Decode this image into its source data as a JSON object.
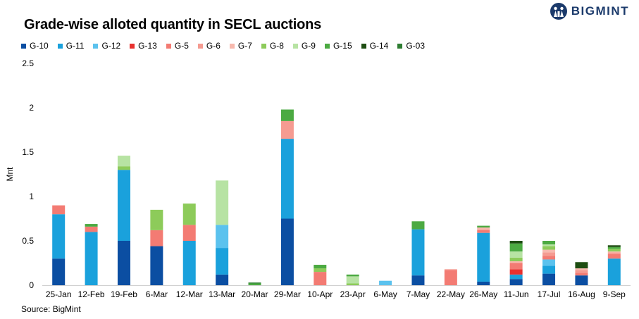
{
  "brand": {
    "name": "BIGMINT",
    "color": "#1b3a6b"
  },
  "source": "Source: BigMint",
  "chart_data": {
    "type": "bar",
    "stacked": true,
    "title": "Grade-wise alloted quantity in SECL auctions",
    "xlabel": "",
    "ylabel": "Mnt",
    "ylim": [
      0,
      2.5
    ],
    "yticks": [
      "0",
      "0.5",
      "1",
      "1.5",
      "2",
      "2.5"
    ],
    "ytick_values": [
      0,
      0.5,
      1,
      1.5,
      2,
      2.5
    ],
    "grid": false,
    "legend": "top",
    "categories": [
      "25-Jan",
      "12-Feb",
      "19-Feb",
      "6-Mar",
      "12-Mar",
      "13-Mar",
      "20-Mar",
      "29-Mar",
      "10-Apr",
      "23-Apr",
      "6-May",
      "7-May",
      "22-May",
      "26-May",
      "11-Jun",
      "17-Jul",
      "16-Aug",
      "9-Sep"
    ],
    "series": [
      {
        "name": "G-10",
        "color": "#0b4ea2",
        "values": [
          0.3,
          0,
          0.5,
          0.44,
          0,
          0.12,
          0,
          0.75,
          0,
          0,
          0,
          0.11,
          0,
          0.04,
          0.07,
          0.13,
          0.11,
          0
        ]
      },
      {
        "name": "G-11",
        "color": "#1aa1dc",
        "values": [
          0.5,
          0.6,
          0.8,
          0,
          0.5,
          0.3,
          0,
          0.9,
          0,
          0,
          0,
          0.52,
          0,
          0.55,
          0.05,
          0.09,
          0,
          0.3
        ]
      },
      {
        "name": "G-12",
        "color": "#5bc2ee",
        "values": [
          0,
          0,
          0,
          0,
          0,
          0.26,
          0,
          0,
          0,
          0,
          0.05,
          0,
          0,
          0,
          0,
          0.07,
          0,
          0
        ]
      },
      {
        "name": "G-13",
        "color": "#e8312f",
        "values": [
          0,
          0,
          0,
          0,
          0,
          0,
          0,
          0,
          0,
          0,
          0,
          0,
          0,
          0,
          0.06,
          0,
          0,
          0
        ]
      },
      {
        "name": "G-5",
        "color": "#f37b73",
        "values": [
          0.1,
          0.06,
          0,
          0.18,
          0.18,
          0,
          0,
          0,
          0.15,
          0,
          0,
          0,
          0.17,
          0.03,
          0.07,
          0.04,
          0.03,
          0.05
        ]
      },
      {
        "name": "G-6",
        "color": "#f59b91",
        "values": [
          0,
          0,
          0,
          0,
          0,
          0,
          0,
          0.2,
          0,
          0,
          0,
          0,
          0.01,
          0.01,
          0,
          0.04,
          0.03,
          0.02
        ]
      },
      {
        "name": "G-7",
        "color": "#f7b9ae",
        "values": [
          0,
          0,
          0,
          0,
          0,
          0,
          0,
          0,
          0,
          0,
          0,
          0,
          0,
          0.02,
          0.02,
          0.03,
          0.02,
          0.01
        ]
      },
      {
        "name": "G-8",
        "color": "#8dcb5a",
        "values": [
          0,
          0,
          0.04,
          0.23,
          0.24,
          0,
          0,
          0,
          0.04,
          0.02,
          0,
          0,
          0,
          0,
          0.04,
          0.04,
          0,
          0.03
        ]
      },
      {
        "name": "G-9",
        "color": "#b7e3a3",
        "values": [
          0,
          0,
          0.12,
          0,
          0,
          0.5,
          0,
          0,
          0,
          0.08,
          0,
          0,
          0,
          0,
          0.07,
          0.02,
          0,
          0
        ]
      },
      {
        "name": "G-15",
        "color": "#4caa42",
        "values": [
          0,
          0.03,
          0,
          0,
          0,
          0,
          0.02,
          0.13,
          0.04,
          0.02,
          0,
          0.09,
          0,
          0.02,
          0.09,
          0.04,
          0,
          0.02
        ]
      },
      {
        "name": "G-14",
        "color": "#1e4d12",
        "values": [
          0,
          0,
          0,
          0,
          0,
          0,
          0,
          0,
          0,
          0,
          0,
          0,
          0,
          0,
          0.03,
          0,
          0.07,
          0.02
        ]
      },
      {
        "name": "G-03",
        "color": "#2e7d32",
        "values": [
          0,
          0,
          0,
          0,
          0,
          0,
          0.01,
          0,
          0,
          0,
          0,
          0,
          0,
          0,
          0,
          0,
          0,
          0
        ]
      }
    ]
  }
}
